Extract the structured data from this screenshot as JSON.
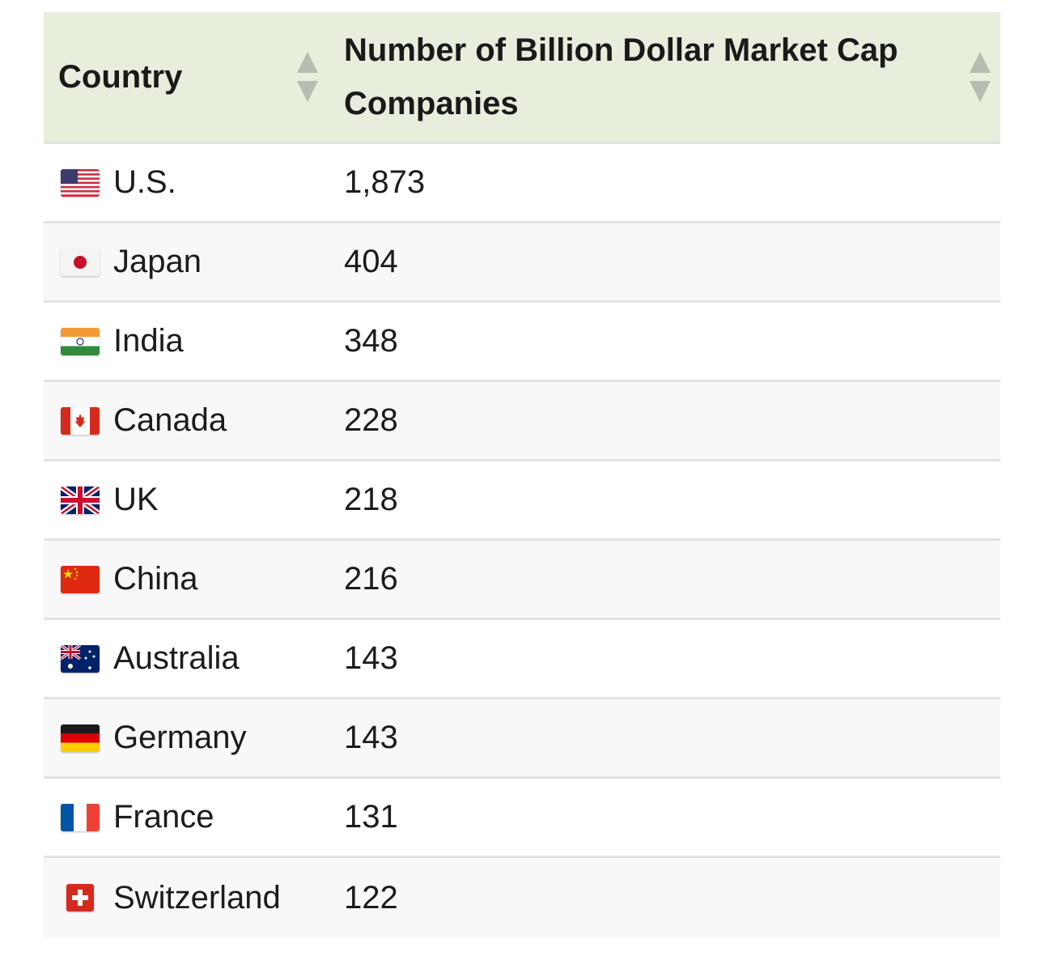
{
  "table": {
    "headers": {
      "country": "Country",
      "count": "Number of Billion Dollar Market Cap Companies"
    },
    "rows": [
      {
        "flag": "us-flag-icon",
        "country": "U.S.",
        "count": "1,873"
      },
      {
        "flag": "japan-flag-icon",
        "country": "Japan",
        "count": "404"
      },
      {
        "flag": "india-flag-icon",
        "country": "India",
        "count": "348"
      },
      {
        "flag": "canada-flag-icon",
        "country": "Canada",
        "count": "228"
      },
      {
        "flag": "uk-flag-icon",
        "country": "UK",
        "count": "218"
      },
      {
        "flag": "china-flag-icon",
        "country": "China",
        "count": "216"
      },
      {
        "flag": "australia-flag-icon",
        "country": "Australia",
        "count": "143"
      },
      {
        "flag": "germany-flag-icon",
        "country": "Germany",
        "count": "143"
      },
      {
        "flag": "france-flag-icon",
        "country": "France",
        "count": "131"
      },
      {
        "flag": "switzerland-flag-icon",
        "country": "Switzerland",
        "count": "122"
      }
    ]
  },
  "colors": {
    "header_bg": "#e7eedc",
    "row_alt_bg": "#f8f8f8",
    "divider": "#e3e3e3",
    "sort_arrow": "#b5bdb0"
  }
}
